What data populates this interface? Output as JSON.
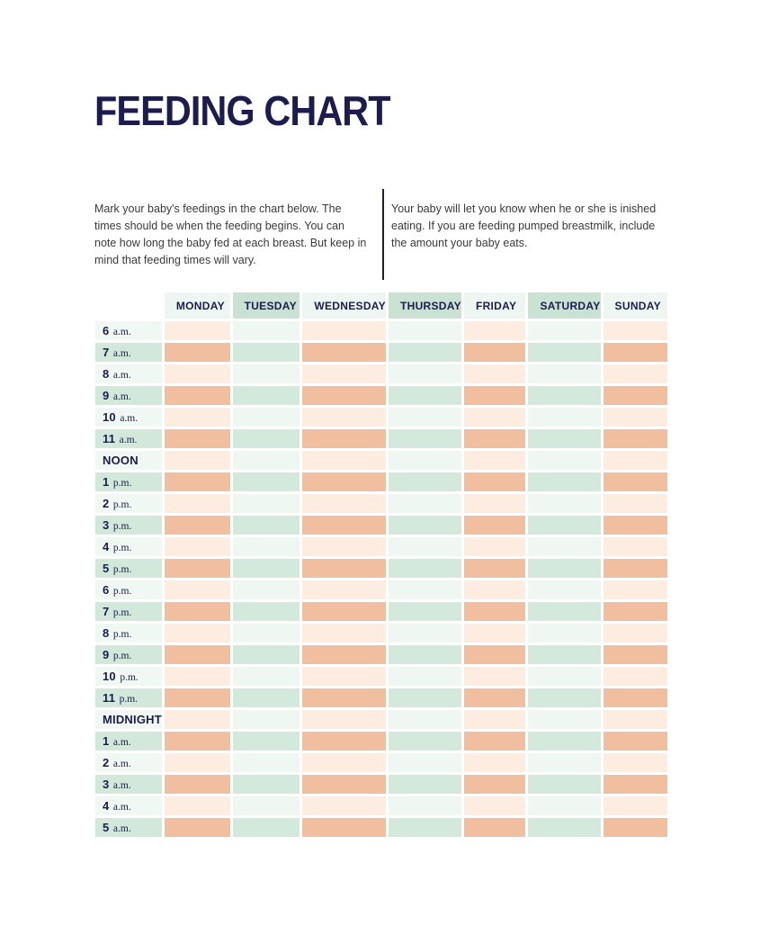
{
  "page": {
    "title": "FEEDING CHART"
  },
  "intro": {
    "left": "Mark your baby's feedings in the chart below. The times should be when the feeding begins. You can note how long the baby fed at each breast. But keep in mind that feeding times will vary.",
    "right": "Your baby will let you know when he or she is inished eating. If you are feeding pumped breastmilk, include the amount your baby eats."
  },
  "table": {
    "days": [
      "MONDAY",
      "TUESDAY",
      "WEDNESDAY",
      "THURSDAY",
      "FRIDAY",
      "SATURDAY",
      "SUNDAY"
    ],
    "times": [
      {
        "num": "6",
        "suffix": "a.m."
      },
      {
        "num": "7",
        "suffix": "a.m."
      },
      {
        "num": "8",
        "suffix": "a.m."
      },
      {
        "num": "9",
        "suffix": "a.m."
      },
      {
        "num": "10",
        "suffix": "a.m."
      },
      {
        "num": "11",
        "suffix": "a.m."
      },
      {
        "num": "NOON",
        "suffix": ""
      },
      {
        "num": "1",
        "suffix": "p.m."
      },
      {
        "num": "2",
        "suffix": "p.m."
      },
      {
        "num": "3",
        "suffix": "p.m."
      },
      {
        "num": "4",
        "suffix": "p.m."
      },
      {
        "num": "5",
        "suffix": "p.m."
      },
      {
        "num": "6",
        "suffix": "p.m."
      },
      {
        "num": "7",
        "suffix": "p.m."
      },
      {
        "num": "8",
        "suffix": "p.m."
      },
      {
        "num": "9",
        "suffix": "p.m."
      },
      {
        "num": "10",
        "suffix": "p.m."
      },
      {
        "num": "11",
        "suffix": "p.m."
      },
      {
        "num": "MIDNIGHT",
        "suffix": ""
      },
      {
        "num": "1",
        "suffix": "a.m."
      },
      {
        "num": "2",
        "suffix": "a.m."
      },
      {
        "num": "3",
        "suffix": "a.m."
      },
      {
        "num": "4",
        "suffix": "a.m."
      },
      {
        "num": "5",
        "suffix": "a.m."
      }
    ]
  },
  "colors": {
    "navy": "#1c1c4e",
    "salmon": "#f1bf9f",
    "salmon_pale": "#fdecdf",
    "mint": "#d3e9dc",
    "mint_pale": "#eff7f2",
    "header_mint": "#c9e2d4",
    "header_pale": "#eef6f1",
    "label_mint": "#d2e8db",
    "label_pale": "#f0f8f3",
    "divider": "#1d1d35"
  }
}
